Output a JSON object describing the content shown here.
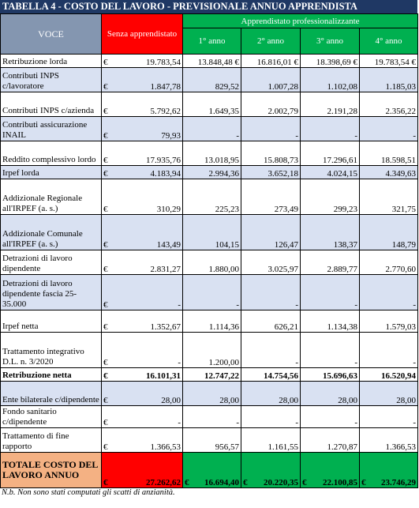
{
  "title": "TABELLA 4 - COSTO DEL LAVORO - PREVISIONALE ANNUO APPRENDISTA",
  "header": {
    "voce": "VOCE",
    "senza": "Senza apprendistato",
    "group": "Apprendistato professionalizzante",
    "years": [
      "1° anno",
      "2° anno",
      "3° anno",
      "4° anno"
    ]
  },
  "currency": "€",
  "rows": [
    {
      "label": "Retribuzione lorda",
      "v": [
        "19.783,54",
        "13.848,48 €",
        "16.816,01 €",
        "18.398,69 €",
        "19.783,54 €"
      ],
      "shade": false
    },
    {
      "label": "Contributi INPS c/lavoratore",
      "v": [
        "1.847,78",
        "829,52",
        "1.007,28",
        "1.102,08",
        "1.185,03"
      ],
      "shade": true
    },
    {
      "label": "Contributi INPS c/azienda",
      "v": [
        "5.792,62",
        "1.649,35",
        "2.002,79",
        "2.191,28",
        "2.356,22"
      ],
      "shade": false
    },
    {
      "label": "Contributi assicurazione INAIL",
      "v": [
        "79,93",
        "-",
        "-",
        "-",
        "-"
      ],
      "shade": true
    },
    {
      "label": "Reddito complessivo lordo",
      "v": [
        "17.935,76",
        "13.018,95",
        "15.808,73",
        "17.296,61",
        "18.598,51"
      ],
      "shade": false
    },
    {
      "label": "Irpef lorda",
      "v": [
        "4.183,94",
        "2.994,36",
        "3.652,18",
        "4.024,15",
        "4.349,63"
      ],
      "shade": true
    },
    {
      "label": "Addizionale Regionale all'IRPEF (a. s.)",
      "v": [
        "310,29",
        "225,23",
        "273,49",
        "299,23",
        "321,75"
      ],
      "shade": false
    },
    {
      "label": "Addizionale Comunale all'IRPEF (a. s.)",
      "v": [
        "143,49",
        "104,15",
        "126,47",
        "138,37",
        "148,79"
      ],
      "shade": true
    },
    {
      "label": "Detrazioni di lavoro dipendente",
      "v": [
        "2.831,27",
        "1.880,00",
        "3.025,97",
        "2.889,77",
        "2.770,60"
      ],
      "shade": false
    },
    {
      "label": "Detrazioni di lavoro dipendente fascia 25-35.000",
      "v": [
        "-",
        "-",
        "-",
        "-",
        "-"
      ],
      "shade": true
    },
    {
      "label": "Irpef netta",
      "v": [
        "1.352,67",
        "1.114,36",
        "626,21",
        "1.134,38",
        "1.579,03"
      ],
      "shade": false
    },
    {
      "label": "Trattamento integrativo D.L. n. 3/2020",
      "v": [
        "-",
        "1.200,00",
        "-",
        "-",
        "-"
      ],
      "shade": false
    },
    {
      "label": "Retribuzione netta",
      "v": [
        "16.101,31",
        "12.747,22",
        "14.754,56",
        "15.696,63",
        "16.520,94"
      ],
      "shade": false,
      "bold": true
    },
    {
      "label": "Ente bilaterale c/dipendente",
      "v": [
        "28,00",
        "28,00",
        "28,00",
        "28,00",
        "28,00"
      ],
      "shade": true
    },
    {
      "label": "Fondo sanitario c/dipendente",
      "v": [
        "-",
        "-",
        "-",
        "-",
        "-"
      ],
      "shade": false
    },
    {
      "label": "Trattamento di fine rapporto",
      "v": [
        "1.366,53",
        "956,57",
        "1.161,55",
        "1.270,87",
        "1.366,53"
      ],
      "shade": false
    }
  ],
  "total": {
    "label": "TOTALE COSTO DEL LAVORO ANNUO",
    "v": [
      "27.262,62",
      "16.694,40",
      "20.220,35",
      "22.100,85",
      "23.746,29"
    ]
  },
  "note": "N.b. Non sono stati computati gli scatti di anzianità."
}
